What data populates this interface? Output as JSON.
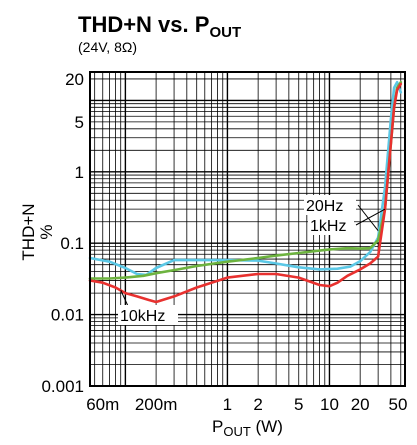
{
  "chart_data": {
    "type": "line",
    "title": {
      "prefix": "THD+N vs. P",
      "sub": "OUT"
    },
    "subtitle": "(24V, 8Ω)",
    "xlabel": {
      "prefix": "P",
      "sub": "OUT",
      "suffix": " (W)"
    },
    "ylabel": {
      "main": "THD+N",
      "unit": "%"
    },
    "x_scale": "log",
    "y_scale": "log",
    "xlim": [
      0.045,
      55
    ],
    "ylim": [
      0.001,
      25
    ],
    "grid": true,
    "x_ticks": [
      {
        "value": 0.06,
        "label": "60m"
      },
      {
        "value": 0.2,
        "label": "200m"
      },
      {
        "value": 1,
        "label": "1"
      },
      {
        "value": 2,
        "label": "2"
      },
      {
        "value": 5,
        "label": "5"
      },
      {
        "value": 10,
        "label": "10"
      },
      {
        "value": 20,
        "label": "20"
      },
      {
        "value": 50,
        "label": "50"
      }
    ],
    "y_ticks": [
      {
        "value": 20,
        "label": "20"
      },
      {
        "value": 5,
        "label": "5"
      },
      {
        "value": 1,
        "label": "1"
      },
      {
        "value": 0.1,
        "label": "0.1"
      },
      {
        "value": 0.01,
        "label": "0.01"
      },
      {
        "value": 0.001,
        "label": "0.001"
      }
    ],
    "series": [
      {
        "name": "20Hz",
        "color": "#5bc8e6",
        "x": [
          0.045,
          0.07,
          0.1,
          0.13,
          0.16,
          0.2,
          0.3,
          0.5,
          1,
          2,
          3,
          5,
          8,
          12,
          16,
          20,
          25,
          30,
          35,
          40,
          43,
          46,
          50
        ],
        "y": [
          0.062,
          0.055,
          0.045,
          0.037,
          0.036,
          0.045,
          0.058,
          0.058,
          0.058,
          0.057,
          0.052,
          0.046,
          0.043,
          0.044,
          0.047,
          0.056,
          0.075,
          0.12,
          0.6,
          5.5,
          15,
          18,
          13
        ]
      },
      {
        "name": "1kHz",
        "color": "#6db33f",
        "x": [
          0.045,
          0.07,
          0.1,
          0.15,
          0.2,
          0.3,
          0.5,
          1,
          2,
          3,
          5,
          10,
          15,
          20,
          25,
          30,
          35,
          40,
          43,
          46,
          50
        ],
        "y": [
          0.032,
          0.032,
          0.033,
          0.035,
          0.038,
          0.042,
          0.048,
          0.055,
          0.062,
          0.067,
          0.073,
          0.082,
          0.085,
          0.084,
          0.085,
          0.11,
          0.3,
          2.5,
          8,
          15,
          18
        ]
      },
      {
        "name": "10kHz",
        "color": "#e8312f",
        "x": [
          0.045,
          0.06,
          0.08,
          0.1,
          0.13,
          0.17,
          0.2,
          0.3,
          0.5,
          1,
          2,
          3,
          5,
          8,
          10,
          12,
          15,
          20,
          25,
          30,
          35,
          40,
          43,
          46,
          50
        ],
        "y": [
          0.03,
          0.028,
          0.024,
          0.02,
          0.018,
          0.016,
          0.015,
          0.018,
          0.024,
          0.033,
          0.037,
          0.037,
          0.033,
          0.026,
          0.025,
          0.028,
          0.035,
          0.043,
          0.052,
          0.065,
          0.3,
          2.5,
          8,
          14,
          17
        ]
      }
    ],
    "annotations": [
      "20Hz",
      "1kHz",
      "10kHz"
    ]
  }
}
